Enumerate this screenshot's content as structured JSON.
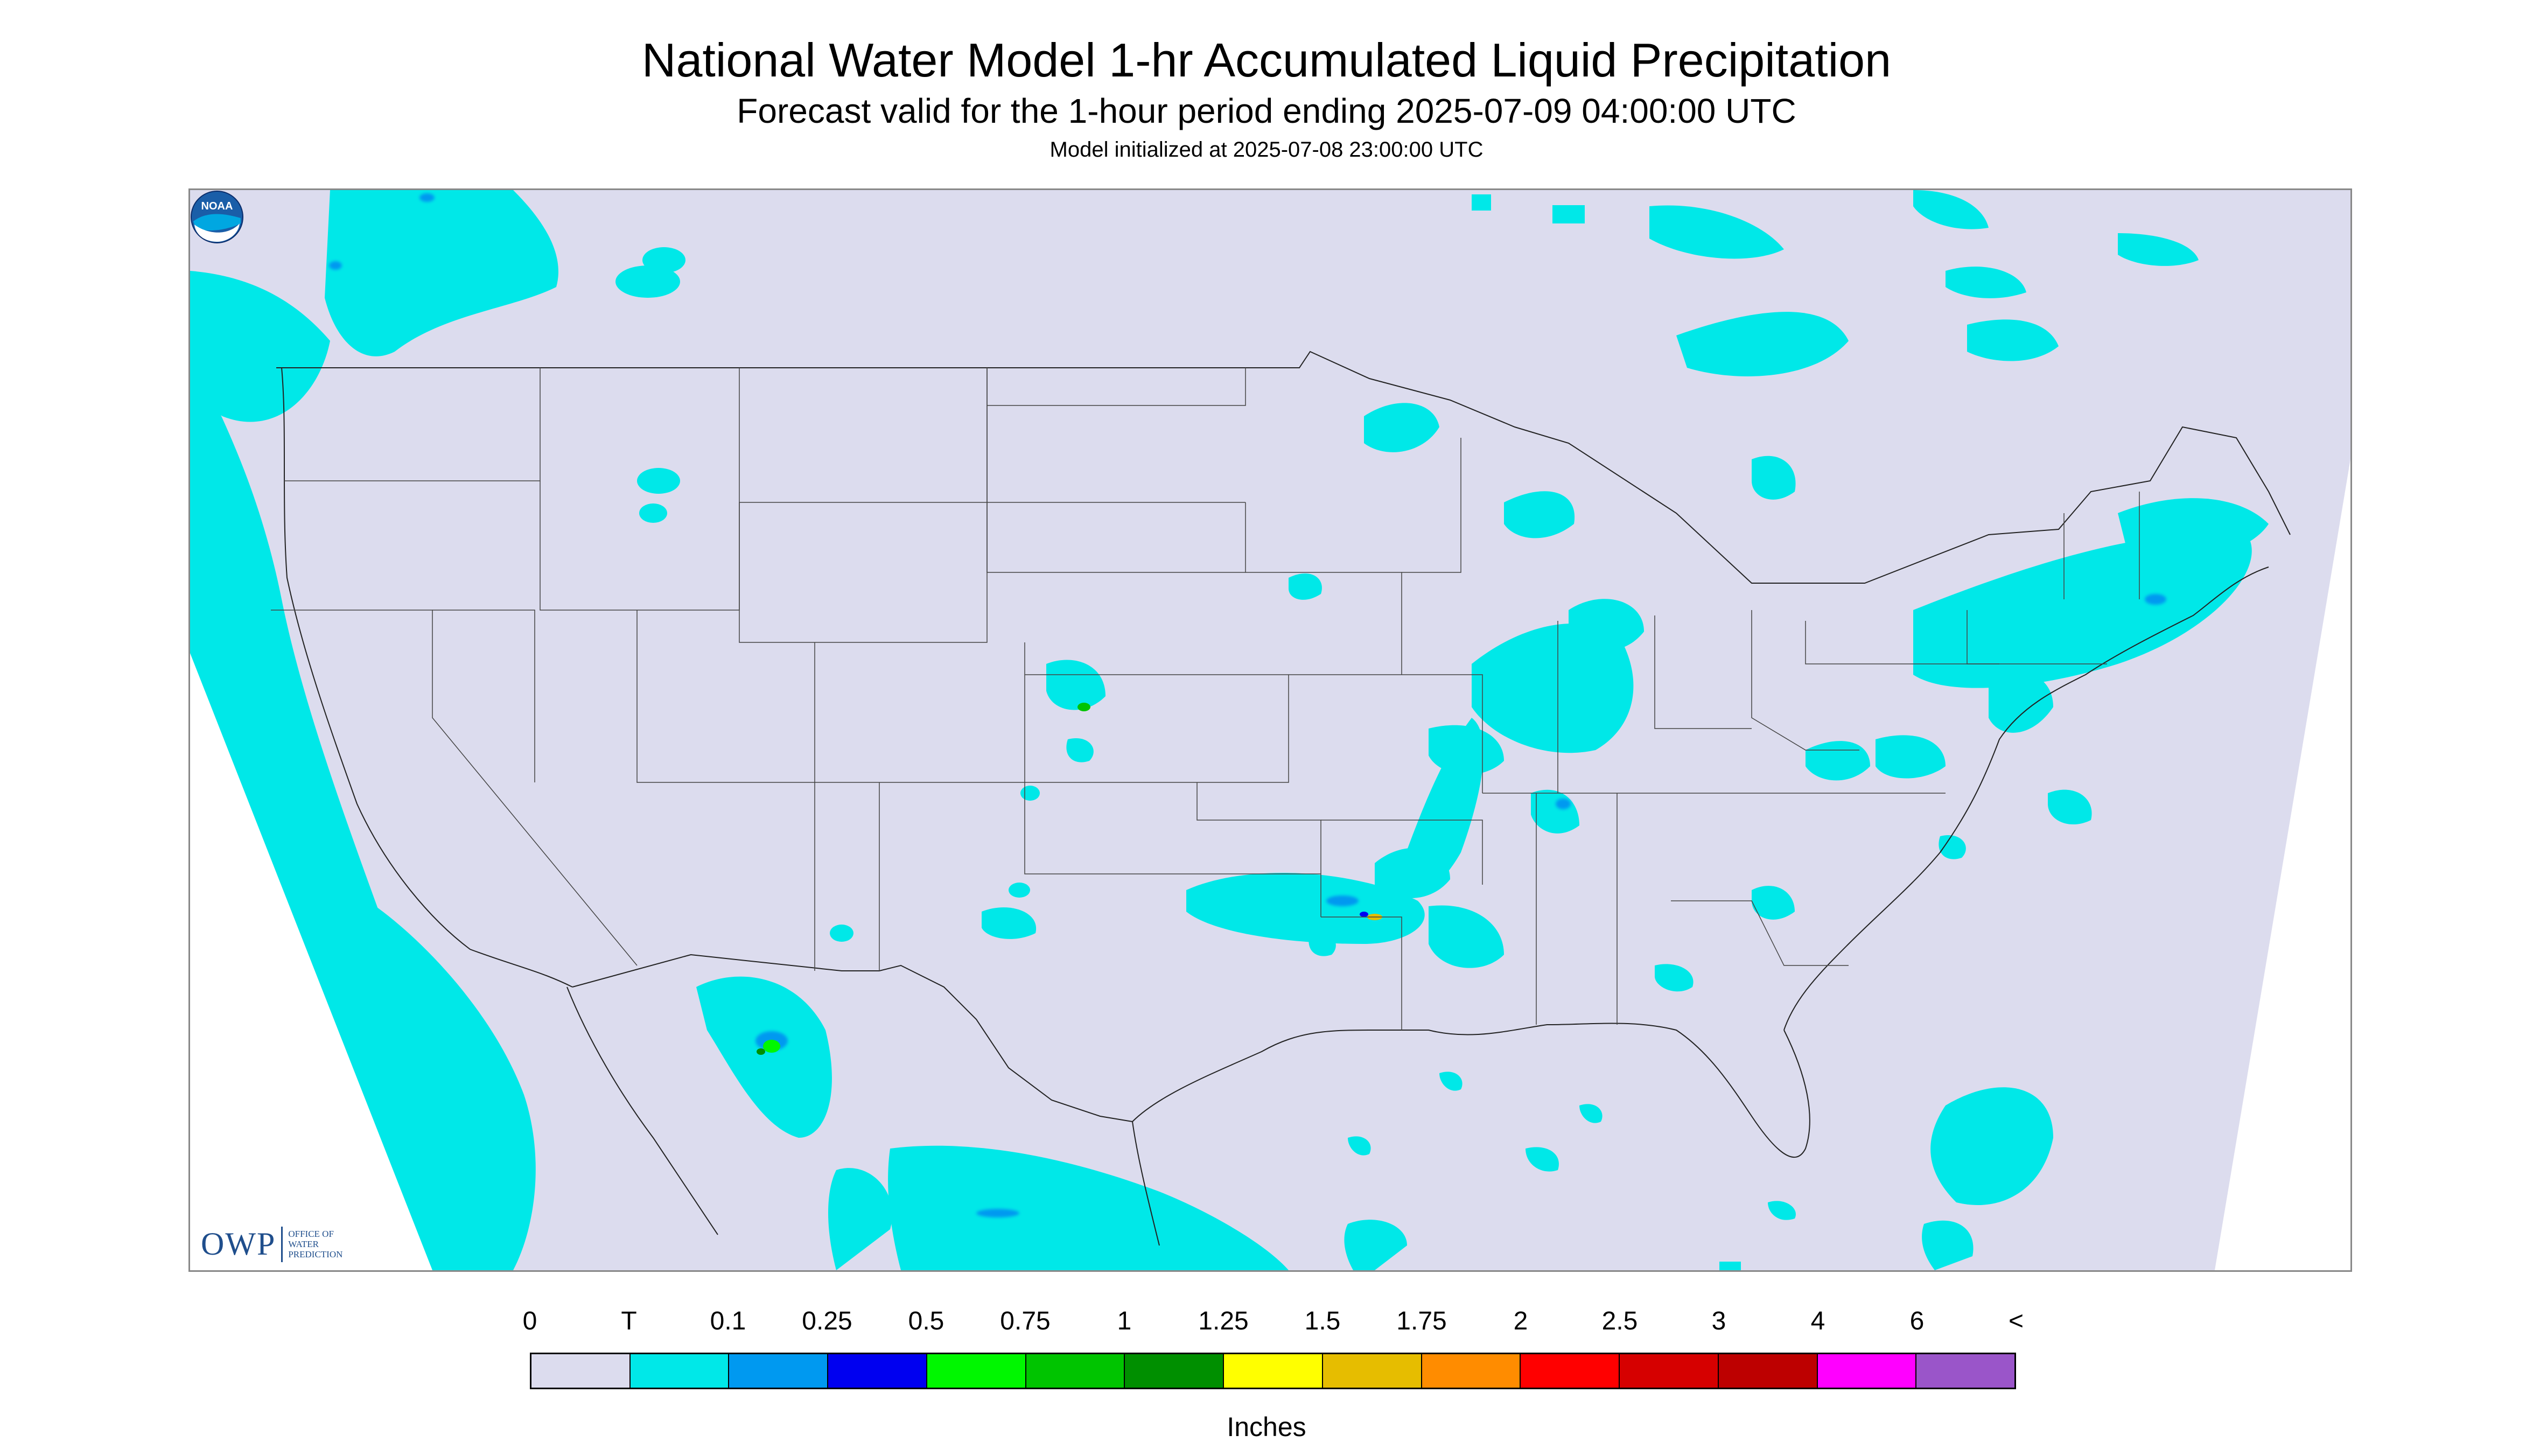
{
  "header": {
    "title": "National Water Model 1-hr Accumulated Liquid Precipitation",
    "subtitle": "Forecast valid for the 1-hour period ending 2025-07-09 04:00:00 UTC",
    "init": "Model initialized at 2025-07-08 23:00:00 UTC"
  },
  "map": {
    "domain_fill": "#dcdcee",
    "region": "Continental United States"
  },
  "logos": {
    "owp_letters": "OWP",
    "owp_line1": "Office of",
    "owp_line2": "Water",
    "owp_line3": "Prediction",
    "noaa_text": "NOAA"
  },
  "legend": {
    "labels": [
      "0",
      "T",
      "0.1",
      "0.25",
      "0.5",
      "0.75",
      "1",
      "1.25",
      "1.5",
      "1.75",
      "2",
      "2.5",
      "3",
      "4",
      "6",
      "<"
    ],
    "colors": [
      "#dcdcee",
      "#00e8e8",
      "#0099f0",
      "#0000f0",
      "#00f700",
      "#00c400",
      "#008f00",
      "#ffff00",
      "#e6bd00",
      "#ff8c00",
      "#ff0000",
      "#d60000",
      "#bd0000",
      "#ff00ff",
      "#9a55c9"
    ],
    "units": "Inches"
  }
}
